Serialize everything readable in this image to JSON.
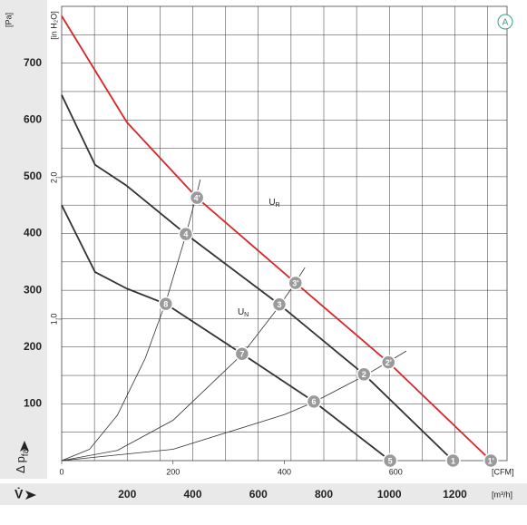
{
  "chart_data": {
    "type": "line",
    "y_label": "[Pa]",
    "y2_label": "[in H₂O]",
    "x_label": "[CFM]",
    "x2_label": "[m³/h]",
    "y_title": {
      "text": "Δ p",
      "sub": "fa"
    },
    "x_title": "V̇",
    "badge": "A",
    "xlim": [
      0,
      800
    ],
    "xticks": [
      0,
      200,
      400,
      600
    ],
    "x2lim": [
      0,
      1359.2
    ],
    "x2ticks": [
      200,
      400,
      600,
      800,
      1000,
      1200
    ],
    "x2minorticks": [
      100,
      300,
      500,
      700,
      900,
      1100,
      1300
    ],
    "ylim": [
      0,
      800
    ],
    "yticks": [
      100,
      200,
      300,
      400,
      500,
      600,
      700
    ],
    "yminorticks": [
      50,
      150,
      250,
      350,
      450,
      550,
      650,
      750
    ],
    "y2lim": [
      0,
      3.21
    ],
    "y2ticks": [
      {
        "value": 1,
        "label": "1,0"
      },
      {
        "value": 2,
        "label": "2,0"
      }
    ],
    "grid": true,
    "series": [
      {
        "color": "#d8262b",
        "width": 1.8,
        "x": [
          0,
          60,
          117,
          243,
          420,
          587,
          771
        ],
        "values": [
          783,
          687,
          596,
          463,
          313,
          173,
          0
        ]
      },
      {
        "color": "#333333",
        "width": 1.8,
        "x": [
          0,
          60,
          117,
          223,
          391,
          543,
          703
        ],
        "values": [
          644,
          521,
          484,
          399,
          275,
          152,
          0
        ]
      },
      {
        "color": "#333333",
        "width": 1.8,
        "x": [
          0,
          60,
          117,
          187,
          324,
          453,
          590
        ],
        "values": [
          450,
          332,
          303,
          276,
          188,
          104,
          0
        ]
      },
      {
        "color": "#333333",
        "width": 0.8,
        "x": [
          0,
          50,
          100,
          150,
          187,
          223,
          243,
          249
        ],
        "values": [
          0,
          20,
          80,
          180,
          279,
          397,
          471,
          495
        ]
      },
      {
        "color": "#333333",
        "width": 0.8,
        "x": [
          0,
          100,
          200,
          324,
          391,
          420,
          437
        ],
        "values": [
          0,
          18,
          71,
          187,
          272,
          314,
          340
        ]
      },
      {
        "color": "#333333",
        "width": 0.8,
        "x": [
          0,
          200,
          400,
          453,
          543,
          587,
          619
        ],
        "values": [
          0,
          20,
          81,
          103,
          149,
          174,
          193
        ]
      }
    ],
    "points": [
      {
        "label": "1",
        "x": 703,
        "y": 0
      },
      {
        "label": "1'",
        "x": 771,
        "y": 0
      },
      {
        "label": "2",
        "x": 543,
        "y": 152
      },
      {
        "label": "2'",
        "x": 587,
        "y": 173
      },
      {
        "label": "3",
        "x": 391,
        "y": 275
      },
      {
        "label": "3'",
        "x": 420,
        "y": 313
      },
      {
        "label": "4",
        "x": 223,
        "y": 399
      },
      {
        "label": "4'",
        "x": 243,
        "y": 463
      },
      {
        "label": "5",
        "x": 590,
        "y": 0
      },
      {
        "label": "6",
        "x": 453,
        "y": 104
      },
      {
        "label": "7",
        "x": 324,
        "y": 188
      },
      {
        "label": "8",
        "x": 187,
        "y": 276
      }
    ],
    "annotations": [
      {
        "text": "U",
        "sub": "R",
        "x": 372,
        "y": 455
      },
      {
        "text": "U",
        "sub": "N",
        "x": 316,
        "y": 262
      }
    ]
  }
}
